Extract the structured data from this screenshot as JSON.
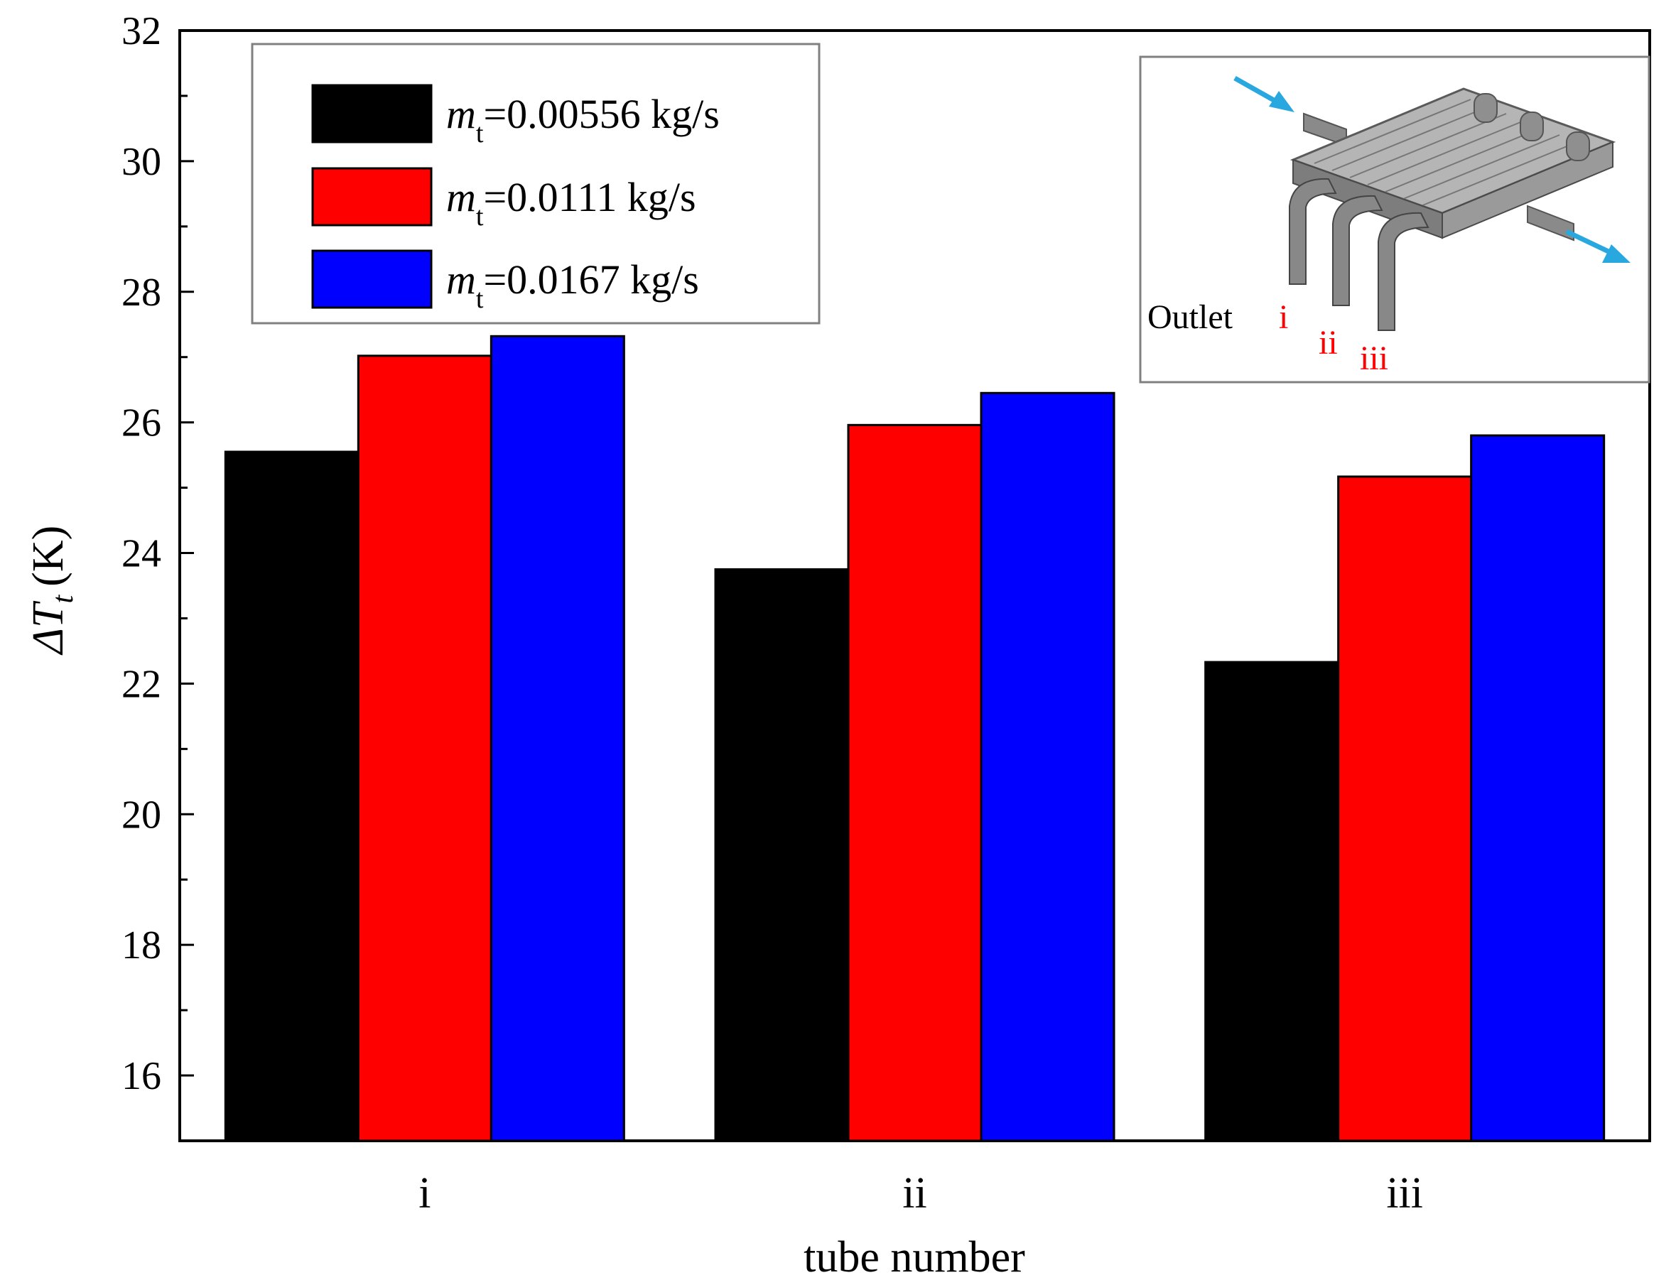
{
  "chart_data": {
    "type": "bar",
    "categories": [
      "i",
      "ii",
      "iii"
    ],
    "series": [
      {
        "name": "m_t=0.00556 kg/s",
        "symbol": "m",
        "subscript": "t",
        "value_label": "=0.00556 kg/s",
        "color": "#000000",
        "values": [
          25.55,
          23.75,
          22.33
        ]
      },
      {
        "name": "m_t=0.0111 kg/s",
        "symbol": "m",
        "subscript": "t",
        "value_label": "=0.0111 kg/s",
        "color": "#ff0000",
        "values": [
          27.02,
          25.96,
          25.17
        ]
      },
      {
        "name": "m_t=0.0167 kg/s",
        "symbol": "m",
        "subscript": "t",
        "value_label": "=0.0167 kg/s",
        "color": "#0000ff",
        "values": [
          27.32,
          26.45,
          25.8
        ]
      }
    ],
    "ylim": [
      15,
      32
    ],
    "yticks": [
      16,
      18,
      20,
      22,
      24,
      26,
      28,
      30,
      32
    ],
    "ytick_labels": [
      "16",
      "18",
      "20",
      "22",
      "24",
      "26",
      "28",
      "30",
      "32"
    ],
    "xlabel": "tube number",
    "ylabel": {
      "prefix": "ΔT",
      "subscript": "t",
      "unit": "(K)"
    },
    "legend_position": "top-left",
    "grid": false
  },
  "inset": {
    "description_label": "Outlet",
    "outlet_labels": [
      "i",
      "ii",
      "iii"
    ],
    "label_color": "#ff0000",
    "arrow_color": "#29a8e0",
    "position": "top-right"
  }
}
